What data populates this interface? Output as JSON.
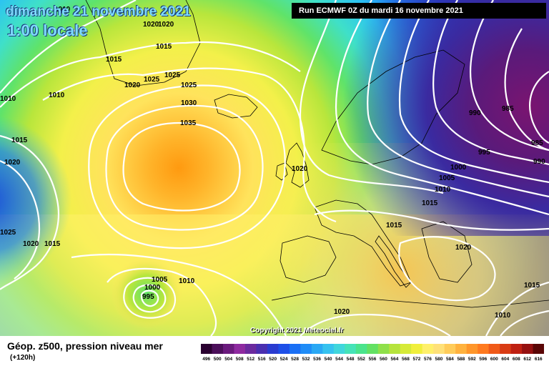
{
  "header": {
    "date": "dimanche 21 novembre 2021",
    "time": "1:00 locale",
    "run": "Run ECMWF 0Z du mardi 16 novembre 2021"
  },
  "footer": {
    "parameter": "Géop. z500, pression niveau mer",
    "lead_time": "(+120h)",
    "copyright": "Copyright 2021 Meteociel.fr"
  },
  "isobar_labels": [
    "1010",
    "1020",
    "1020",
    "1015",
    "1010",
    "1010",
    "1015",
    "1020",
    "1025",
    "1025",
    "1030",
    "1035",
    "1025",
    "1020",
    "1015",
    "1020",
    "1025",
    "1015",
    "1010",
    "1005",
    "1000",
    "995",
    "1020",
    "1000",
    "1005",
    "1010",
    "1015",
    "1015",
    "1020",
    "1020",
    "1015",
    "1010",
    "990",
    "985",
    "985",
    "990",
    "995"
  ],
  "scale": {
    "values": [
      "496",
      "500",
      "504",
      "508",
      "512",
      "516",
      "520",
      "524",
      "528",
      "532",
      "536",
      "540",
      "544",
      "548",
      "552",
      "556",
      "560",
      "564",
      "568",
      "572",
      "576",
      "580",
      "584",
      "588",
      "592",
      "596",
      "600",
      "604",
      "608",
      "612",
      "616"
    ],
    "colors": [
      "#2a0030",
      "#4b0f5a",
      "#6a1a7d",
      "#8e2aa0",
      "#6b2a9e",
      "#4a2fb0",
      "#2a3bd0",
      "#1e4fe8",
      "#1a6ff5",
      "#1f8cf7",
      "#2aa8f4",
      "#36c2ef",
      "#40d6dc",
      "#45e3b8",
      "#4ae48c",
      "#63e163",
      "#8fe04a",
      "#b6e43c",
      "#d6ea38",
      "#f0ef3c",
      "#fff06a",
      "#ffe178",
      "#ffcc5a",
      "#ffb23e",
      "#ff962a",
      "#ff7a1f",
      "#f05a18",
      "#d93b14",
      "#bf2012",
      "#951010",
      "#5a0606"
    ]
  },
  "colors": {
    "title": "#7fdcff",
    "isobar": "#ffffff",
    "coastline": "#000000"
  }
}
